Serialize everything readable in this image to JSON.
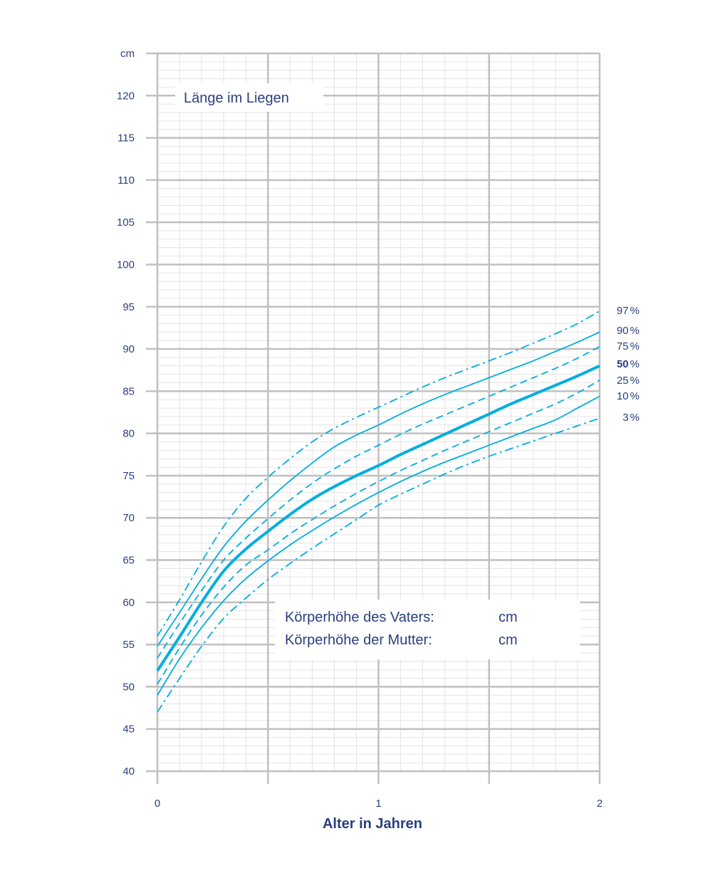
{
  "chart_data": {
    "type": "line",
    "title": "Länge im Liegen",
    "xlabel": "Alter in Jahren",
    "ylabel": "cm",
    "xlim": [
      0,
      2
    ],
    "ylim": [
      40,
      125
    ],
    "x_ticks": [
      0,
      1,
      2
    ],
    "x_tick_labels": [
      "0",
      "1",
      "2"
    ],
    "y_ticks": [
      40,
      45,
      50,
      55,
      60,
      65,
      70,
      75,
      80,
      85,
      90,
      95,
      100,
      105,
      110,
      115,
      120,
      125
    ],
    "y_tick_labels": [
      "40",
      "45",
      "50",
      "55",
      "60",
      "65",
      "70",
      "75",
      "80",
      "85",
      "90",
      "95",
      "100",
      "105",
      "110",
      "115",
      "120",
      "cm"
    ],
    "grid": true,
    "colors": {
      "line": "#00aee0",
      "text": "#2a3f7e",
      "grid_major": "#c0c0c0",
      "grid_minor": "#e4e4e4"
    },
    "x": [
      0,
      0.1,
      0.2,
      0.3,
      0.4,
      0.5,
      0.6,
      0.7,
      0.8,
      0.9,
      1.0,
      1.1,
      1.2,
      1.3,
      1.4,
      1.5,
      1.6,
      1.7,
      1.8,
      1.9,
      2.0
    ],
    "series": [
      {
        "name": "97 %",
        "label_num": "97",
        "label_unit": "%",
        "style": "dashdot",
        "bold": false,
        "values": [
          56.0,
          60.3,
          64.8,
          69.0,
          72.3,
          74.8,
          77.0,
          79.0,
          80.6,
          81.9,
          83.1,
          84.3,
          85.5,
          86.6,
          87.6,
          88.6,
          89.6,
          90.7,
          91.8,
          93.0,
          94.5
        ]
      },
      {
        "name": "90 %",
        "label_num": "90",
        "label_unit": "%",
        "style": "solid",
        "bold": false,
        "values": [
          54.8,
          58.8,
          62.8,
          66.6,
          69.6,
          72.1,
          74.4,
          76.5,
          78.4,
          79.8,
          81.0,
          82.3,
          83.5,
          84.6,
          85.6,
          86.6,
          87.6,
          88.6,
          89.7,
          90.8,
          92.0
        ]
      },
      {
        "name": "75 %",
        "label_num": "75",
        "label_unit": "%",
        "style": "dashed",
        "bold": false,
        "values": [
          53.4,
          57.5,
          61.4,
          65.0,
          67.6,
          69.9,
          72.1,
          74.1,
          75.8,
          77.3,
          78.6,
          79.9,
          81.1,
          82.2,
          83.3,
          84.4,
          85.5,
          86.6,
          87.7,
          88.9,
          90.3
        ]
      },
      {
        "name": "50 %",
        "label_num": "50",
        "label_unit": "%",
        "style": "solid",
        "bold": true,
        "values": [
          51.9,
          55.9,
          60.0,
          63.7,
          66.3,
          68.4,
          70.4,
          72.2,
          73.7,
          75.0,
          76.2,
          77.5,
          78.7,
          79.9,
          81.1,
          82.3,
          83.5,
          84.6,
          85.7,
          86.8,
          88.0
        ]
      },
      {
        "name": "25 %",
        "label_num": "25",
        "label_unit": "%",
        "style": "dashed",
        "bold": false,
        "values": [
          50.3,
          54.6,
          58.5,
          61.8,
          64.4,
          66.2,
          68.1,
          69.8,
          71.4,
          72.9,
          74.3,
          75.6,
          76.8,
          78.0,
          79.1,
          80.2,
          81.3,
          82.4,
          83.5,
          84.8,
          86.3
        ]
      },
      {
        "name": "10 %",
        "label_num": "10",
        "label_unit": "%",
        "style": "solid",
        "bold": false,
        "values": [
          49.0,
          53.3,
          57.0,
          60.2,
          62.8,
          64.9,
          66.8,
          68.5,
          70.1,
          71.6,
          73.0,
          74.3,
          75.5,
          76.6,
          77.6,
          78.6,
          79.6,
          80.6,
          81.6,
          83.0,
          84.4
        ]
      },
      {
        "name": "3 %",
        "label_num": "3",
        "label_unit": "%",
        "style": "dashdot",
        "bold": false,
        "values": [
          47.0,
          51.0,
          54.8,
          58.1,
          60.5,
          62.7,
          64.6,
          66.4,
          68.1,
          69.8,
          71.5,
          72.8,
          74.0,
          75.2,
          76.3,
          77.3,
          78.2,
          79.1,
          80.0,
          80.9,
          81.8
        ]
      }
    ]
  },
  "parents_box": {
    "father_label": "Körperhöhe des Vaters:",
    "father_unit": "cm",
    "mother_label": "Körperhöhe der Mutter:",
    "mother_unit": "cm"
  }
}
